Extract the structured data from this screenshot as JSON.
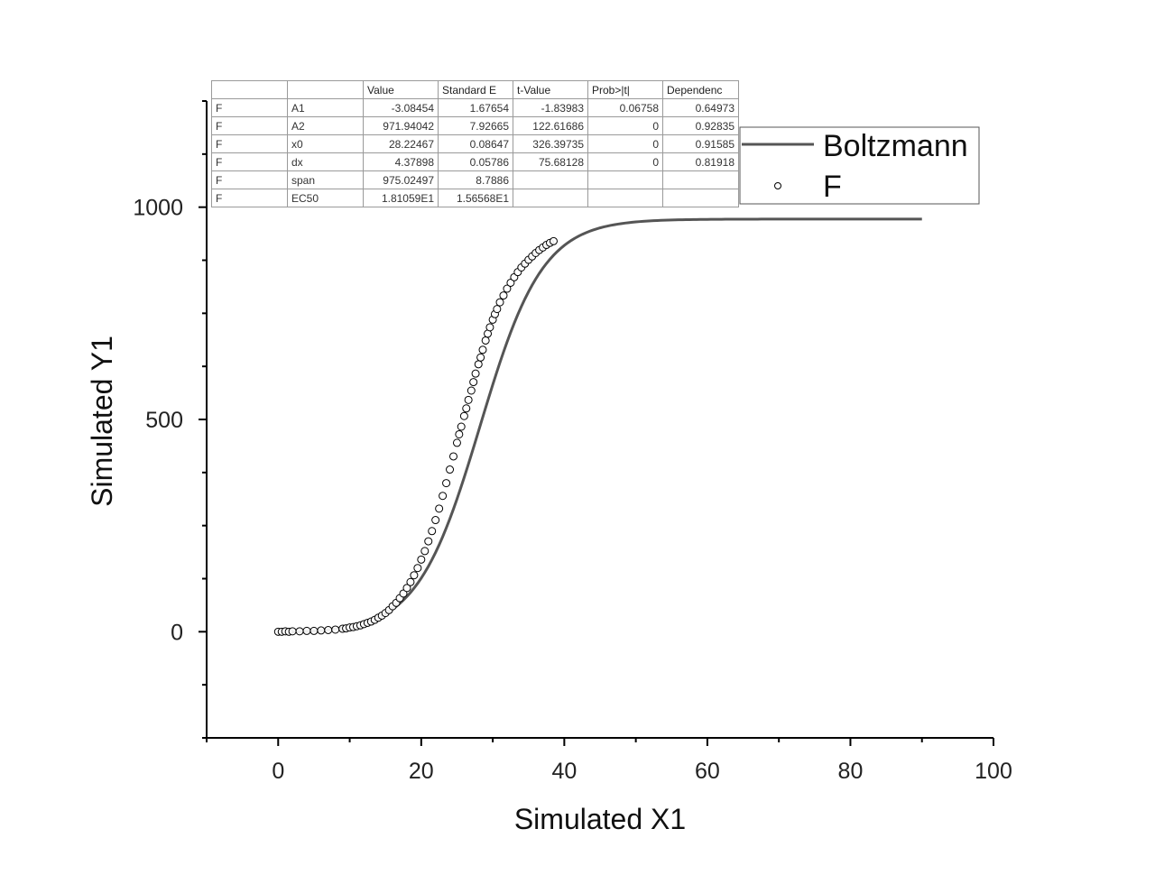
{
  "chart_data": {
    "type": "scatter",
    "xlabel": "Simulated X1",
    "ylabel": "Simulated Y1",
    "xlim": [
      -10,
      100
    ],
    "ylim": [
      -250,
      1250
    ],
    "x_ticks": [
      "0",
      "20",
      "40",
      "60",
      "80",
      "100"
    ],
    "y_ticks": [
      "0",
      "500",
      "1000"
    ],
    "grid": false,
    "legend_position": "top-right",
    "legend": [
      {
        "label": "Boltzmann",
        "marker": "line"
      },
      {
        "label": "F",
        "marker": "open-circle"
      }
    ],
    "fit": {
      "name": "Boltzmann",
      "A1": -3.08454,
      "A2": 971.94042,
      "x0": 28.22467,
      "dx": 4.37898,
      "x_range": [
        0,
        90
      ]
    },
    "series": [
      {
        "name": "F",
        "x": [
          0,
          0.5,
          1,
          1.5,
          2,
          3,
          4,
          5,
          6,
          7,
          8,
          9,
          9.5,
          10,
          10.5,
          11,
          11.5,
          12,
          12.5,
          13,
          13.5,
          14,
          14.5,
          15,
          15.5,
          16,
          16.5,
          17,
          17.5,
          18,
          18.5,
          19,
          19.5,
          20,
          20.5,
          21,
          21.5,
          22,
          22.5,
          23,
          23.5,
          24,
          24.5,
          25,
          25.3,
          25.6,
          26,
          26.3,
          26.6,
          27,
          27.3,
          27.6,
          28,
          28.3,
          28.6,
          29,
          29.3,
          29.6,
          30,
          30.3,
          30.6,
          31,
          31.5,
          32,
          32.5,
          33,
          33.5,
          34,
          34.5,
          35,
          35.5,
          36,
          36.5,
          37,
          37.5,
          38,
          38.5
        ],
        "y": [
          0,
          0,
          1,
          0,
          1,
          1,
          2,
          2,
          3,
          4,
          5,
          7,
          8,
          10,
          11,
          13,
          15,
          18,
          21,
          24,
          28,
          33,
          38,
          44,
          51,
          60,
          68,
          79,
          90,
          103,
          117,
          133,
          150,
          170,
          190,
          213,
          237,
          263,
          290,
          320,
          350,
          382,
          413,
          445,
          465,
          483,
          508,
          526,
          546,
          568,
          588,
          608,
          630,
          646,
          664,
          686,
          702,
          717,
          735,
          748,
          760,
          776,
          792,
          808,
          822,
          835,
          847,
          858,
          867,
          876,
          884,
          892,
          899,
          905,
          911,
          916,
          920
        ]
      }
    ]
  },
  "fit_table": {
    "headers": [
      "",
      "",
      "Value",
      "Standard E",
      "t-Value",
      "Prob>|t|",
      "Dependenc"
    ],
    "rows": [
      [
        "F",
        "A1",
        "-3.08454",
        "1.67654",
        "-1.83983",
        "0.06758",
        "0.64973"
      ],
      [
        "F",
        "A2",
        "971.94042",
        "7.92665",
        "122.61686",
        "0",
        "0.92835"
      ],
      [
        "F",
        "x0",
        "28.22467",
        "0.08647",
        "326.39735",
        "0",
        "0.91585"
      ],
      [
        "F",
        "dx",
        "4.37898",
        "0.05786",
        "75.68128",
        "0",
        "0.81918"
      ],
      [
        "F",
        "span",
        "975.02497",
        "8.7886",
        "",
        "",
        ""
      ],
      [
        "F",
        "EC50",
        "1.81059E1",
        "1.56568E1",
        "",
        "",
        ""
      ]
    ]
  }
}
